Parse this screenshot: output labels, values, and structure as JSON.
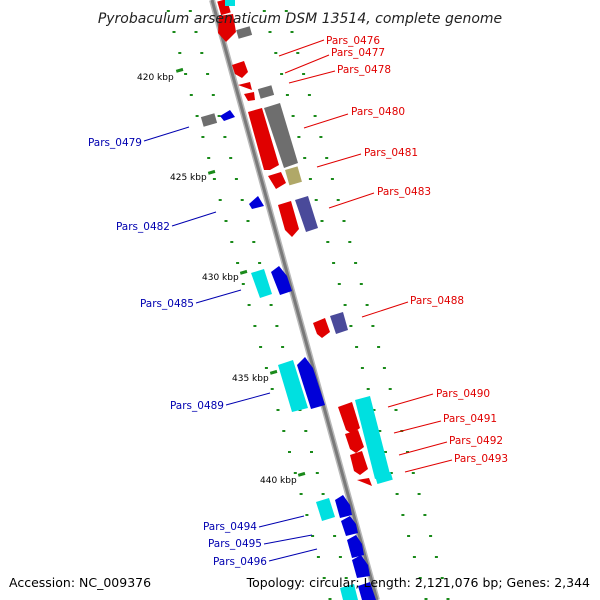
{
  "title": "Pyrobaculum arsenaticum DSM 13514, complete genome",
  "accession": "Accession: NC_009376",
  "summary": "Topology: circular; Length: 2,121,076 bp; Genes: 2,344",
  "ticks": [
    {
      "label": "420 kbp",
      "kbp": 420
    },
    {
      "label": "425 kbp",
      "kbp": 425
    },
    {
      "label": "430 kbp",
      "kbp": 430
    },
    {
      "label": "435 kbp",
      "kbp": 435
    },
    {
      "label": "440 kbp",
      "kbp": 440
    }
  ],
  "strands": {
    "forward": "#e00000",
    "reverse": "#0000d8",
    "other_gray": "#6e6e6e",
    "other_cyan": "#00e0e0",
    "other_purple": "#4a4a9a",
    "other_olive": "#b0a868"
  },
  "labels": [
    {
      "text": "Pars_0476",
      "strand": "forward"
    },
    {
      "text": "Pars_0477",
      "strand": "forward"
    },
    {
      "text": "Pars_0478",
      "strand": "forward"
    },
    {
      "text": "Pars_0480",
      "strand": "forward"
    },
    {
      "text": "Pars_0481",
      "strand": "forward"
    },
    {
      "text": "Pars_0483",
      "strand": "forward"
    },
    {
      "text": "Pars_0488",
      "strand": "forward"
    },
    {
      "text": "Pars_0490",
      "strand": "forward"
    },
    {
      "text": "Pars_0491",
      "strand": "forward"
    },
    {
      "text": "Pars_0492",
      "strand": "forward"
    },
    {
      "text": "Pars_0493",
      "strand": "forward"
    },
    {
      "text": "Pars_0479",
      "strand": "reverse"
    },
    {
      "text": "Pars_0482",
      "strand": "reverse"
    },
    {
      "text": "Pars_0485",
      "strand": "reverse"
    },
    {
      "text": "Pars_0489",
      "strand": "reverse"
    },
    {
      "text": "Pars_0494",
      "strand": "reverse"
    },
    {
      "text": "Pars_0495",
      "strand": "reverse"
    },
    {
      "text": "Pars_0496",
      "strand": "reverse"
    }
  ]
}
